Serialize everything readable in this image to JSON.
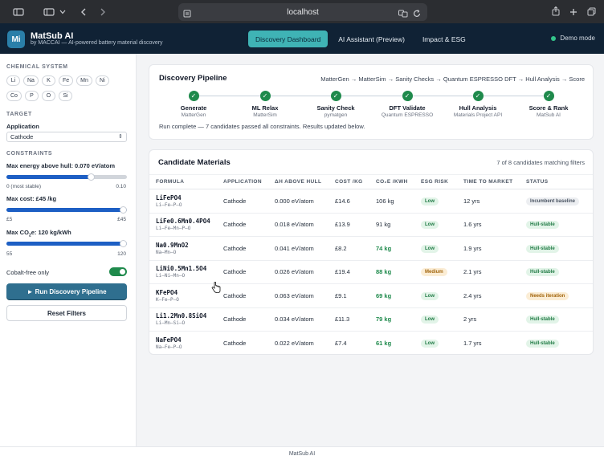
{
  "browser": {
    "url": "localhost"
  },
  "header": {
    "logo_text": "Mi",
    "title": "MatSub AI",
    "subtitle": "by MACCAI — AI-powered battery material discovery",
    "tabs": [
      {
        "label": "Discovery Dashboard",
        "active": true
      },
      {
        "label": "AI Assistant (Preview)",
        "active": false
      },
      {
        "label": "Impact & ESG",
        "active": false
      }
    ],
    "mode_label": "Demo mode"
  },
  "sidebar": {
    "chemical_system_label": "CHEMICAL SYSTEM",
    "elements_row1": [
      "Li",
      "Na",
      "K",
      "Fe",
      "Mn",
      "Ni"
    ],
    "elements_row2": [
      "Co",
      "P",
      "O",
      "Si"
    ],
    "target_label": "TARGET",
    "application_label": "Application",
    "application_value": "Cathode",
    "constraints_label": "CONSTRAINTS",
    "hull": {
      "label": "Max energy above hull: 0.070 eV/atom",
      "min_label": "0 (most stable)",
      "max_label": "0.10",
      "fraction": 0.7
    },
    "cost": {
      "label": "Max cost: £45 /kg",
      "min_label": "£5",
      "max_label": "£45",
      "fraction": 1.0
    },
    "co2": {
      "label_prefix": "Max CO",
      "label_sub": "2",
      "label_suffix": "e: 120 kg/kWh",
      "min_label": "55",
      "max_label": "120",
      "fraction": 1.0
    },
    "cobalt_free_label": "Cobalt-free only",
    "cobalt_free_on": true,
    "run_button": "► Run Discovery Pipeline",
    "reset_button": "Reset Filters"
  },
  "pipeline": {
    "title": "Discovery Pipeline",
    "flow_text": "MatterGen → MatterSim → Sanity Checks → Quantum ESPRESSO DFT → Hull Analysis → Score",
    "steps": [
      {
        "name": "Generate",
        "tool": "MatterGen"
      },
      {
        "name": "ML Relax",
        "tool": "MatterSim"
      },
      {
        "name": "Sanity Check",
        "tool": "pymatgen"
      },
      {
        "name": "DFT Validate",
        "tool": "Quantum ESPRESSO"
      },
      {
        "name": "Hull Analysis",
        "tool": "Materials Project API"
      },
      {
        "name": "Score & Rank",
        "tool": "MatSub AI"
      }
    ],
    "check_glyph": "✓",
    "status_message": "Run complete — 7 candidates passed all constraints. Results updated below."
  },
  "candidates": {
    "title": "Candidate Materials",
    "count_text": "7 of 8 candidates matching filters",
    "columns": [
      "FORMULA",
      "APPLICATION",
      "ΔH ABOVE HULL",
      "COST /KG",
      "CO₂E /KWH",
      "ESG RISK",
      "TIME TO MARKET",
      "STATUS"
    ],
    "rows": [
      {
        "formula": "LiFePO4",
        "elements": "Li–Fe–P–O",
        "application": "Cathode",
        "hull": "0.000 eV/atom",
        "cost": "£14.6",
        "co2": "106 kg",
        "co2_green": false,
        "esg": "Low",
        "esg_level": "low",
        "ttm": "12 yrs",
        "status": "Incumbent baseline",
        "status_kind": "incumbent"
      },
      {
        "formula": "LiFe0.6Mn0.4PO4",
        "elements": "Li–Fe–Mn–P–O",
        "application": "Cathode",
        "hull": "0.018 eV/atom",
        "cost": "£13.9",
        "co2": "91 kg",
        "co2_green": false,
        "esg": "Low",
        "esg_level": "low",
        "ttm": "1.6 yrs",
        "status": "Hull-stable",
        "status_kind": "stable"
      },
      {
        "formula": "Na0.9MnO2",
        "elements": "Na–Mn–O",
        "application": "Cathode",
        "hull": "0.041 eV/atom",
        "cost": "£8.2",
        "co2": "74 kg",
        "co2_green": true,
        "esg": "Low",
        "esg_level": "low",
        "ttm": "1.9 yrs",
        "status": "Hull-stable",
        "status_kind": "stable"
      },
      {
        "formula": "LiNi0.5Mn1.5O4",
        "elements": "Li–Ni–Mn–O",
        "application": "Cathode",
        "hull": "0.026 eV/atom",
        "cost": "£19.4",
        "co2": "88 kg",
        "co2_green": true,
        "esg": "Medium",
        "esg_level": "medium",
        "ttm": "2.1 yrs",
        "status": "Hull-stable",
        "status_kind": "stable"
      },
      {
        "formula": "KFePO4",
        "elements": "K–Fe–P–O",
        "application": "Cathode",
        "hull": "0.063 eV/atom",
        "cost": "£9.1",
        "co2": "69 kg",
        "co2_green": true,
        "esg": "Low",
        "esg_level": "low",
        "ttm": "2.4 yrs",
        "status": "Needs iteration",
        "status_kind": "needs"
      },
      {
        "formula": "Li1.2Mn0.8SiO4",
        "elements": "Li–Mn–Si–O",
        "application": "Cathode",
        "hull": "0.034 eV/atom",
        "cost": "£11.3",
        "co2": "79 kg",
        "co2_green": true,
        "esg": "Low",
        "esg_level": "low",
        "ttm": "2 yrs",
        "status": "Hull-stable",
        "status_kind": "stable"
      },
      {
        "formula": "NaFePO4",
        "elements": "Na–Fe–P–O",
        "application": "Cathode",
        "hull": "0.022 eV/atom",
        "cost": "£7.4",
        "co2": "61 kg",
        "co2_green": true,
        "esg": "Low",
        "esg_level": "low",
        "ttm": "1.7 yrs",
        "status": "Hull-stable",
        "status_kind": "stable"
      }
    ]
  },
  "footer": {
    "text": "MatSub AI"
  }
}
